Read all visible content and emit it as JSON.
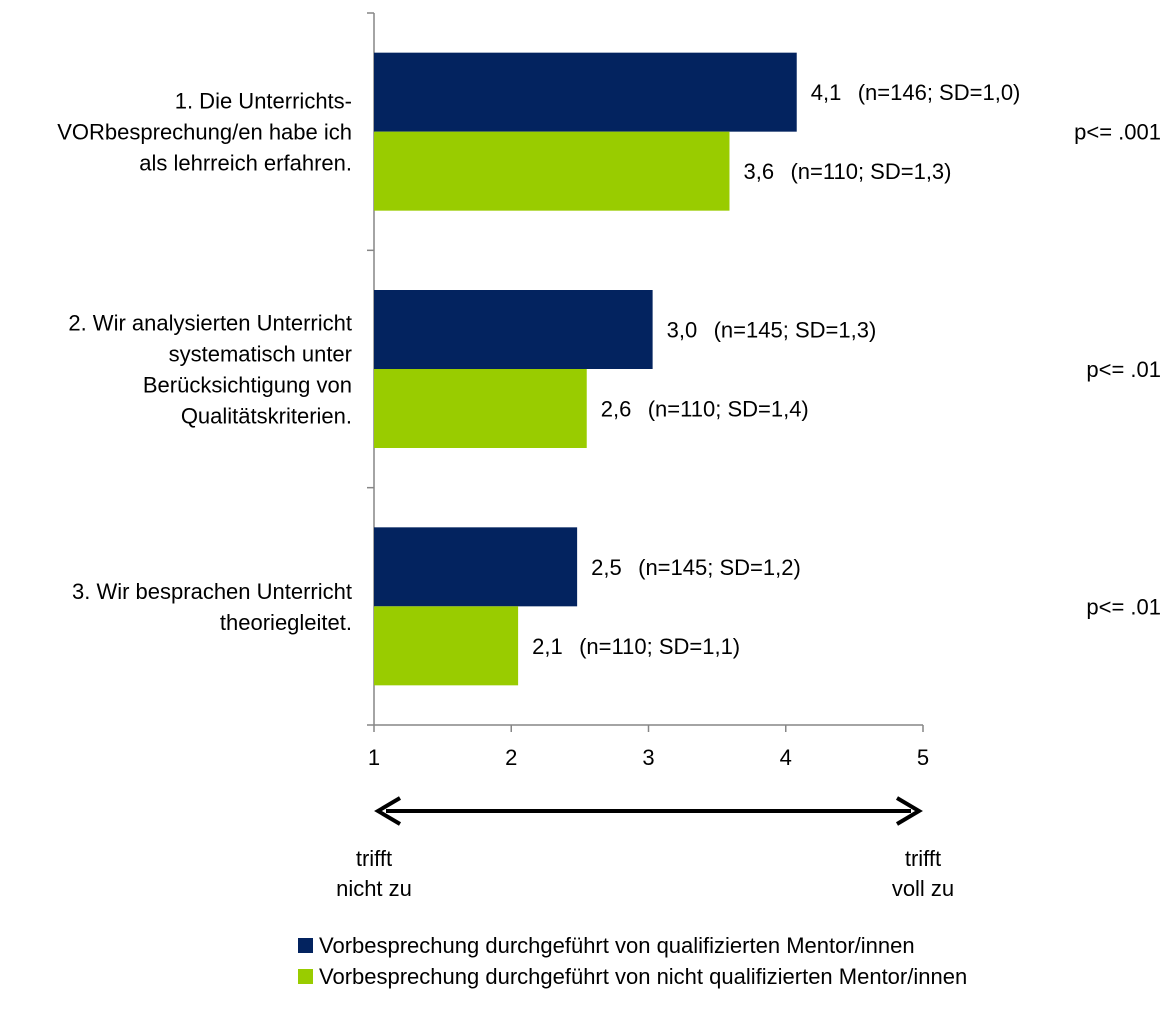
{
  "colors": {
    "qualified": "#03235F",
    "unqualified": "#99CC00",
    "axis": "#868686",
    "arrow": "#000000"
  },
  "chart_data": {
    "type": "bar",
    "orientation": "horizontal",
    "xlim": [
      1,
      5
    ],
    "xticks": [
      "1",
      "2",
      "3",
      "4",
      "5"
    ],
    "grid": false,
    "legend_position": "bottom",
    "categories": [
      {
        "lines": [
          "1. Die Unterrichts-",
          "VORbesprechung/en habe ich",
          "als lehrreich erfahren."
        ],
        "p": "p<= .001"
      },
      {
        "lines": [
          "2. Wir analysierten Unterricht",
          "systematisch unter",
          "Berücksichtigung von",
          "Qualitätskriterien."
        ],
        "p": "p<= .01"
      },
      {
        "lines": [
          "3. Wir besprachen Unterricht",
          "theoriegleitet."
        ],
        "p": "p<= .01"
      }
    ],
    "series": [
      {
        "name": "Vorbesprechung durchgeführt von qualifizierten Mentor/innen",
        "values": [
          4.08,
          3.03,
          2.48
        ],
        "value_labels": [
          "4,1",
          "3,0",
          "2,5"
        ],
        "annotations": [
          "(n=146; SD=1,0)",
          "(n=145; SD=1,3)",
          "(n=145; SD=1,2)"
        ]
      },
      {
        "name": "Vorbesprechung durchgeführt von nicht qualifizierten Mentor/innen",
        "values": [
          3.59,
          2.55,
          2.05
        ],
        "value_labels": [
          "3,6",
          "2,6",
          "2,1"
        ],
        "annotations": [
          "(n=110; SD=1,3)",
          "(n=110; SD=1,4)",
          "(n=110; SD=1,1)"
        ]
      }
    ],
    "scale_labels": {
      "left": [
        "trifft",
        "nicht zu"
      ],
      "right": [
        "trifft",
        "voll zu"
      ]
    }
  }
}
